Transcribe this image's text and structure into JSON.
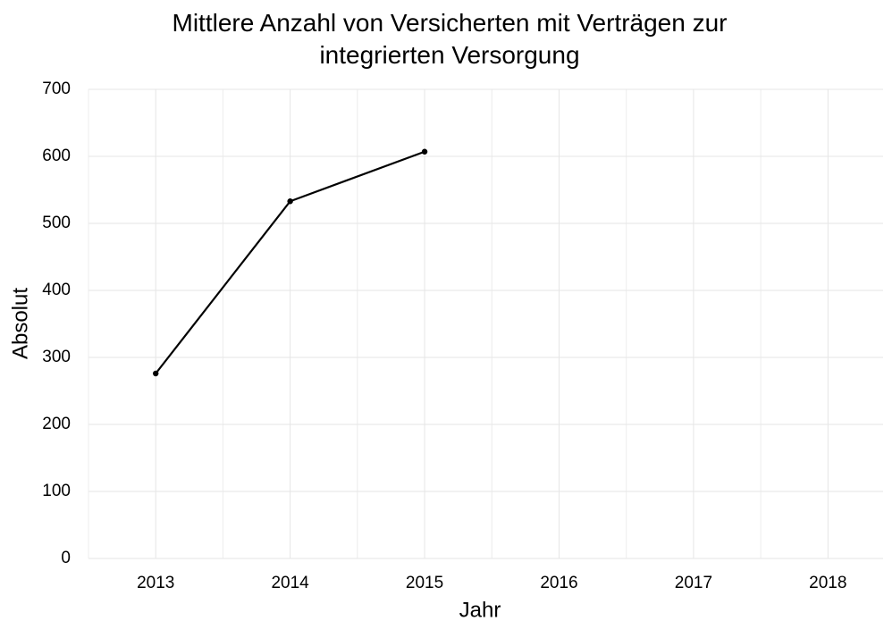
{
  "chart_data": {
    "type": "line",
    "title": "Mittlere Anzahl von Versicherten mit Verträgen zur integrierten Versorgung",
    "x_label": "Jahr",
    "y_label": "Absolut",
    "x": [
      2013,
      2014,
      2015
    ],
    "series": [
      {
        "name": "Absolut",
        "color": "#000000",
        "values": [
          276,
          533,
          607
        ]
      }
    ],
    "xlim": [
      2012.5,
      2018.41
    ],
    "xticks": [
      2013,
      2014,
      2015,
      2016,
      2017,
      2018
    ],
    "ylim": [
      0,
      700
    ],
    "yticks": [
      0,
      100,
      200,
      300,
      400,
      500,
      600,
      700
    ],
    "grid": true
  }
}
